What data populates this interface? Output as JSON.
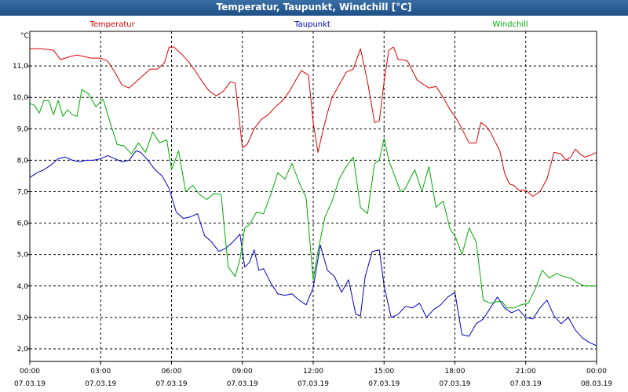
{
  "window": {
    "title": "Temperatur, Taupunkt, Windchill [°C]"
  },
  "chart_data": {
    "type": "line",
    "title": "Temperatur, Taupunkt, Windchill [°C]",
    "ylabel": "°C",
    "ylim": [
      1.6,
      12.1
    ],
    "xlim": [
      0,
      24
    ],
    "grid": true,
    "y_ticks": [
      {
        "value": 2.0,
        "label": "2,0"
      },
      {
        "value": 3.0,
        "label": "3,0"
      },
      {
        "value": 4.0,
        "label": "4,0"
      },
      {
        "value": 5.0,
        "label": "5,0"
      },
      {
        "value": 6.0,
        "label": "6,0"
      },
      {
        "value": 7.0,
        "label": "7,0"
      },
      {
        "value": 8.0,
        "label": "8,0"
      },
      {
        "value": 9.0,
        "label": "9,0"
      },
      {
        "value": 10.0,
        "label": "10,0"
      },
      {
        "value": 11.0,
        "label": "11,0"
      }
    ],
    "x_ticks": [
      {
        "value": 0,
        "time": "00:00",
        "date": "07.03.19"
      },
      {
        "value": 3,
        "time": "03:00",
        "date": "07.03.19"
      },
      {
        "value": 6,
        "time": "06:00",
        "date": "07.03.19"
      },
      {
        "value": 9,
        "time": "09:00",
        "date": "07.03.19"
      },
      {
        "value": 12,
        "time": "12:00",
        "date": "07.03.19"
      },
      {
        "value": 15,
        "time": "15:00",
        "date": "07.03.19"
      },
      {
        "value": 18,
        "time": "18:00",
        "date": "07.03.19"
      },
      {
        "value": 21,
        "time": "21:00",
        "date": "07.03.19"
      },
      {
        "value": 24,
        "time": "00:00",
        "date": "08.03.19"
      }
    ],
    "series": [
      {
        "name": "Temperatur",
        "color": "#dd0000",
        "x": [
          0,
          0.5,
          1,
          1.3,
          1.7,
          2,
          2.3,
          2.6,
          3,
          3.3,
          3.6,
          3.9,
          4.2,
          4.5,
          4.8,
          5.1,
          5.4,
          5.7,
          5.9,
          6.1,
          6.4,
          6.7,
          7,
          7.3,
          7.6,
          7.9,
          8.2,
          8.5,
          8.7,
          9,
          9.2,
          9.5,
          9.8,
          10.1,
          10.4,
          10.7,
          11,
          11.3,
          11.5,
          11.8,
          12,
          12.2,
          12.4,
          12.6,
          12.8,
          13.1,
          13.4,
          13.7,
          14,
          14.3,
          14.6,
          14.8,
          15,
          15.2,
          15.4,
          15.6,
          15.8,
          16,
          16.2,
          16.4,
          16.6,
          16.9,
          17.2,
          17.5,
          17.8,
          18,
          18.3,
          18.6,
          18.9,
          19.1,
          19.3,
          19.5,
          19.7,
          19.9,
          20.1,
          20.3,
          20.5,
          20.7,
          21,
          21.3,
          21.6,
          21.9,
          22.2,
          22.5,
          22.7,
          22.9,
          23.1,
          23.3,
          23.5,
          23.7,
          24
        ],
        "values": [
          11.55,
          11.55,
          11.5,
          11.2,
          11.3,
          11.35,
          11.3,
          11.25,
          11.25,
          11.15,
          10.8,
          10.4,
          10.3,
          10.5,
          10.7,
          10.9,
          10.9,
          11.1,
          11.6,
          11.6,
          11.4,
          11.15,
          10.85,
          10.5,
          10.2,
          10.05,
          10.2,
          10.5,
          10.45,
          8.4,
          8.5,
          9.0,
          9.3,
          9.45,
          9.7,
          9.9,
          10.2,
          10.6,
          10.85,
          10.7,
          9.2,
          8.25,
          8.9,
          9.5,
          10.0,
          10.4,
          10.8,
          10.9,
          11.55,
          10.5,
          9.2,
          9.25,
          10.5,
          11.5,
          11.6,
          11.2,
          11.2,
          11.15,
          10.85,
          10.55,
          10.45,
          10.3,
          10.35,
          10.0,
          9.6,
          9.4,
          9.0,
          8.55,
          8.55,
          9.2,
          9.1,
          8.9,
          8.6,
          8.3,
          7.6,
          7.25,
          7.2,
          7.05,
          7.05,
          6.85,
          7.0,
          7.4,
          8.25,
          8.2,
          8.0,
          8.1,
          8.35,
          8.2,
          8.1,
          8.15,
          8.25
        ]
      },
      {
        "name": "Taupunkt",
        "color": "#0000bb",
        "x": [
          0,
          0.3,
          0.6,
          0.9,
          1.2,
          1.5,
          1.8,
          2.1,
          2.4,
          2.7,
          3,
          3.3,
          3.6,
          3.9,
          4.2,
          4.5,
          4.7,
          5,
          5.3,
          5.6,
          5.9,
          6.2,
          6.5,
          6.8,
          7.1,
          7.4,
          7.7,
          8,
          8.3,
          8.6,
          8.9,
          9.1,
          9.3,
          9.5,
          9.7,
          9.9,
          10.2,
          10.5,
          10.8,
          11.1,
          11.4,
          11.7,
          12,
          12.3,
          12.6,
          12.9,
          13.2,
          13.5,
          13.8,
          14,
          14.2,
          14.5,
          14.8,
          15,
          15.3,
          15.6,
          15.9,
          16.2,
          16.5,
          16.8,
          17.1,
          17.4,
          17.7,
          18,
          18.3,
          18.6,
          18.9,
          19.2,
          19.5,
          19.8,
          20.1,
          20.4,
          20.7,
          21,
          21.3,
          21.6,
          21.9,
          22.2,
          22.5,
          22.8,
          23.1,
          23.4,
          23.7,
          24
        ],
        "values": [
          7.45,
          7.6,
          7.7,
          7.85,
          8.05,
          8.1,
          8.0,
          7.95,
          8.0,
          8.0,
          8.05,
          8.15,
          8.05,
          7.95,
          8.0,
          8.3,
          8.25,
          8.0,
          7.7,
          7.5,
          7.1,
          6.35,
          6.15,
          6.2,
          6.3,
          5.6,
          5.4,
          5.1,
          5.2,
          5.4,
          5.65,
          4.6,
          4.75,
          5.15,
          4.5,
          4.55,
          4.1,
          3.75,
          3.7,
          3.75,
          3.55,
          3.4,
          3.95,
          5.3,
          4.5,
          4.3,
          3.8,
          4.2,
          3.1,
          3.05,
          4.3,
          5.1,
          5.15,
          4.0,
          3.0,
          3.1,
          3.35,
          3.3,
          3.45,
          3.0,
          3.25,
          3.4,
          3.65,
          3.8,
          2.45,
          2.4,
          2.8,
          2.95,
          3.3,
          3.65,
          3.3,
          3.15,
          3.25,
          3.0,
          2.95,
          3.3,
          3.55,
          3.05,
          2.8,
          3.0,
          2.6,
          2.35,
          2.2,
          2.1
        ]
      },
      {
        "name": "Windchill",
        "color": "#00aa00",
        "x": [
          0,
          0.2,
          0.4,
          0.6,
          0.8,
          1,
          1.2,
          1.4,
          1.6,
          1.8,
          2,
          2.2,
          2.5,
          2.8,
          3.1,
          3.4,
          3.7,
          4,
          4.3,
          4.6,
          4.9,
          5.2,
          5.5,
          5.8,
          6,
          6.3,
          6.6,
          6.9,
          7.2,
          7.5,
          7.8,
          8.1,
          8.4,
          8.7,
          8.9,
          9.1,
          9.3,
          9.6,
          9.9,
          10.2,
          10.5,
          10.8,
          11.1,
          11.4,
          11.7,
          12,
          12.2,
          12.5,
          12.8,
          13.1,
          13.4,
          13.7,
          14,
          14.3,
          14.6,
          14.8,
          15,
          15.2,
          15.5,
          15.7,
          15.9,
          16.1,
          16.3,
          16.6,
          16.9,
          17.2,
          17.5,
          17.8,
          18,
          18.3,
          18.6,
          18.9,
          19.2,
          19.5,
          19.8,
          20,
          20.2,
          20.5,
          20.8,
          21.1,
          21.4,
          21.7,
          22,
          22.3,
          22.6,
          22.9,
          23.2,
          23.5,
          23.8,
          24
        ],
        "values": [
          9.8,
          9.75,
          9.5,
          9.9,
          9.9,
          9.45,
          9.9,
          9.4,
          9.6,
          9.45,
          9.4,
          10.25,
          10.1,
          9.7,
          9.95,
          9.2,
          8.5,
          8.45,
          8.2,
          8.55,
          8.25,
          8.9,
          8.55,
          8.65,
          7.7,
          8.3,
          7.0,
          7.2,
          6.9,
          6.75,
          6.95,
          6.9,
          4.6,
          4.3,
          4.85,
          5.85,
          5.95,
          6.35,
          6.3,
          6.9,
          7.6,
          7.4,
          7.9,
          7.3,
          6.8,
          4.2,
          5.1,
          6.2,
          6.7,
          7.4,
          7.8,
          8.1,
          6.5,
          6.3,
          7.9,
          8.0,
          8.7,
          8.0,
          7.4,
          7.0,
          7.1,
          7.4,
          7.7,
          7.0,
          7.8,
          6.5,
          6.7,
          5.8,
          5.6,
          5.0,
          5.85,
          5.4,
          3.55,
          3.45,
          3.5,
          3.5,
          3.3,
          3.3,
          3.4,
          3.45,
          3.9,
          4.5,
          4.25,
          4.4,
          4.3,
          4.25,
          4.1,
          4.0,
          4.0,
          4.0
        ]
      }
    ]
  }
}
